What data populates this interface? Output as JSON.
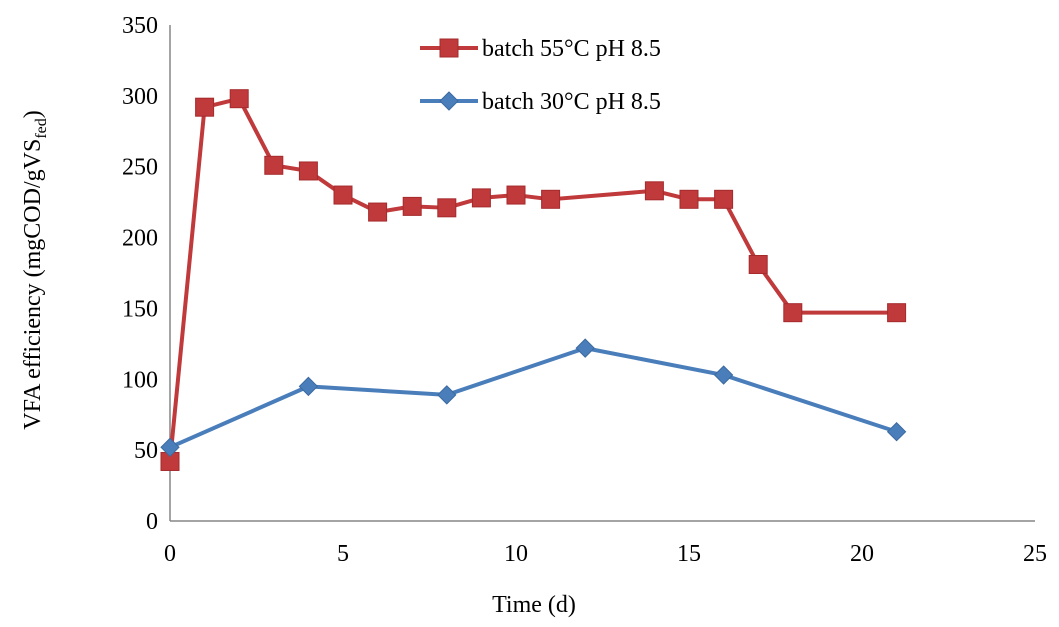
{
  "chart_data": {
    "type": "line",
    "title": "",
    "xlabel": "Time (d)",
    "ylabel": {
      "main": "VFA efficiency  (mgCOD/gVS",
      "sub": "fed",
      "end": ")"
    },
    "xlim": [
      0,
      25
    ],
    "ylim": [
      0,
      350
    ],
    "xticks": [
      0,
      5,
      10,
      15,
      20,
      25
    ],
    "yticks": [
      0,
      50,
      100,
      150,
      200,
      250,
      300,
      350
    ],
    "grid": false,
    "legend_position": "top-center",
    "series": [
      {
        "name": "batch 55°C pH 8.5",
        "marker": "square",
        "color": "#C0393B",
        "x": [
          0,
          1,
          2,
          3,
          4,
          5,
          6,
          7,
          8,
          9,
          10,
          11,
          14,
          15,
          16,
          17,
          18,
          21
        ],
        "y": [
          42,
          292,
          298,
          251,
          247,
          230,
          218,
          222,
          221,
          228,
          230,
          227,
          233,
          227,
          227,
          181,
          147,
          147
        ]
      },
      {
        "name": "batch 30°C pH 8.5",
        "marker": "diamond",
        "color": "#4A7EBB",
        "x": [
          0,
          4,
          8,
          12,
          16,
          21
        ],
        "y": [
          52,
          95,
          89,
          122,
          103,
          63
        ]
      }
    ]
  }
}
